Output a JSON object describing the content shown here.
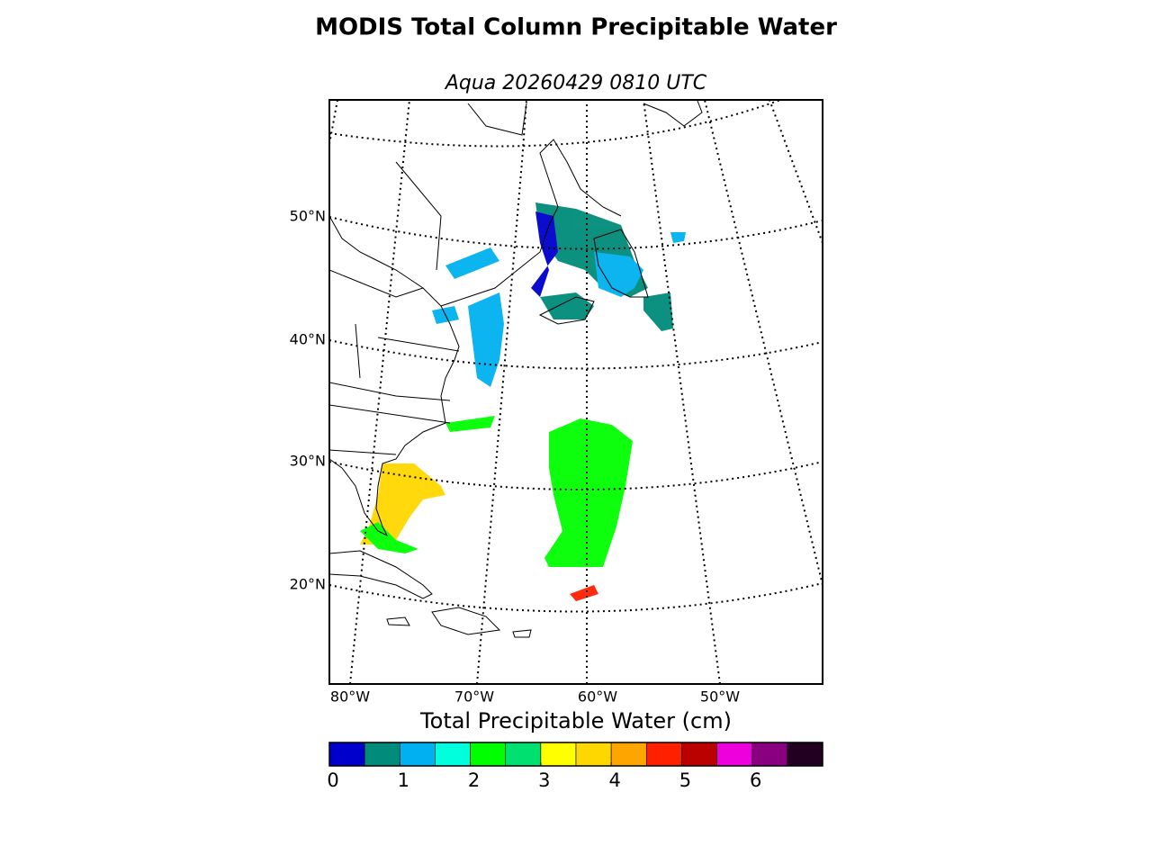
{
  "title": "MODIS Total Column Precipitable Water",
  "subtitle": "Aqua 20260429 0810 UTC",
  "map": {
    "lat_labels": [
      "50°N",
      "40°N",
      "30°N",
      "20°N"
    ],
    "lon_labels": [
      "80°W",
      "70°W",
      "60°W",
      "50°W"
    ]
  },
  "colorbar": {
    "label": "Total Precipitable Water (cm)",
    "range": [
      0,
      7
    ],
    "ticks": [
      0,
      1,
      2,
      3,
      4,
      5,
      6
    ],
    "colors": [
      "#0000cc",
      "#008b7a",
      "#00b0f0",
      "#00ffdd",
      "#00ff00",
      "#00e070",
      "#ffff00",
      "#ffd700",
      "#ffa500",
      "#ff2000",
      "#bb0000",
      "#ee00dd",
      "#880080",
      "#220022"
    ]
  }
}
